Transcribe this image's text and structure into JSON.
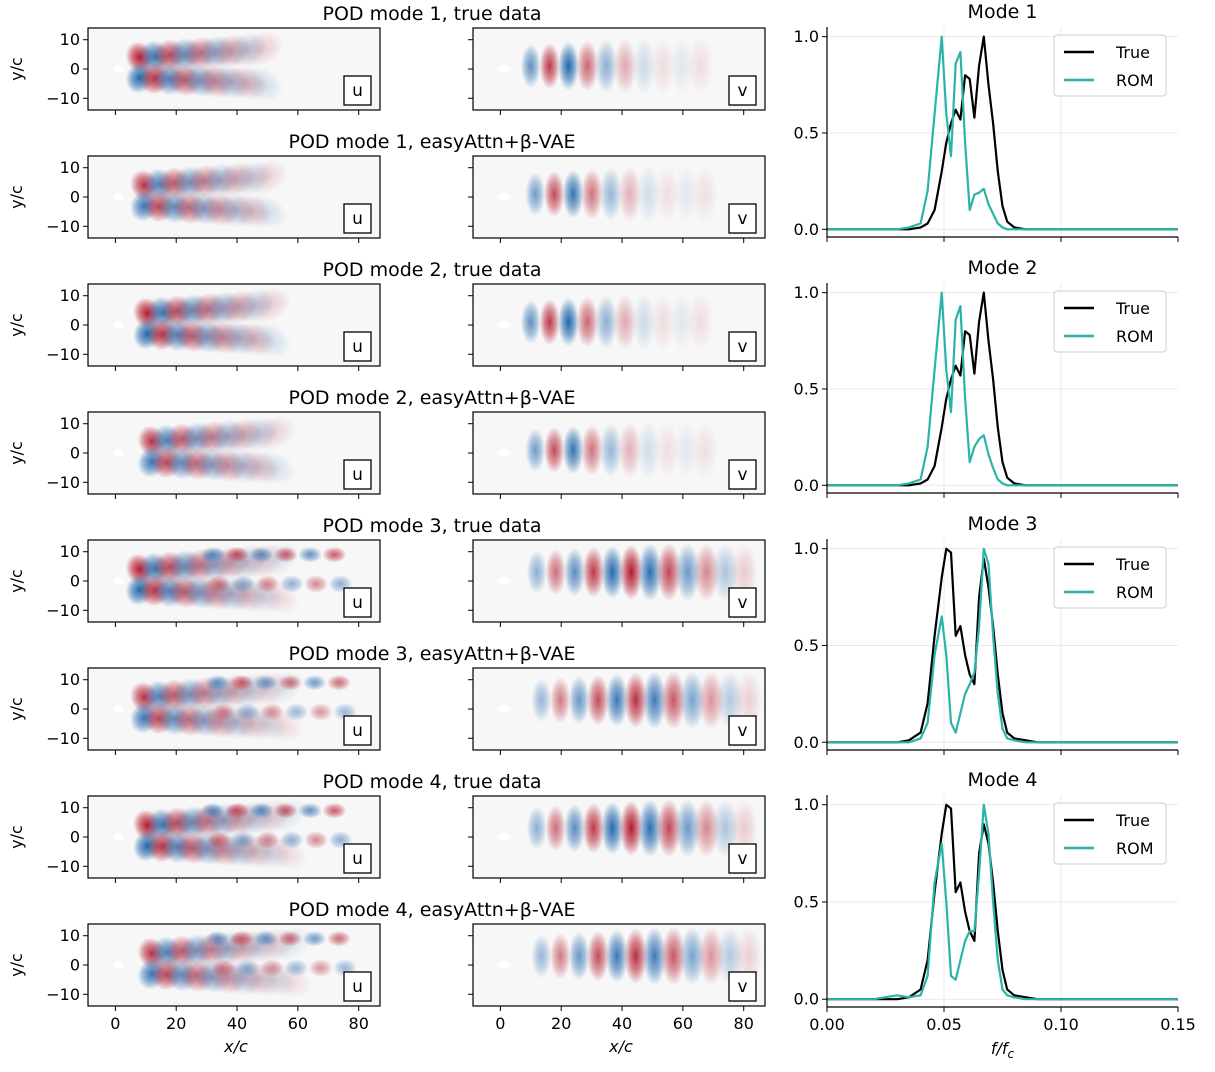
{
  "figure": {
    "rows": [
      {
        "title": "POD mode 1, true data"
      },
      {
        "title": "POD mode 1, easyAttn+β-VAE"
      },
      {
        "title": "POD mode 2, true data"
      },
      {
        "title": "POD mode 2, easyAttn+β-VAE"
      },
      {
        "title": "POD mode 3, true data"
      },
      {
        "title": "POD mode 3, easyAttn+β-VAE"
      },
      {
        "title": "POD mode 4, true data"
      },
      {
        "title": "POD mode 4, easyAttn+β-VAE"
      }
    ],
    "field_labels": {
      "u": "u",
      "v": "v"
    },
    "ylabel": "y/c",
    "xlabel": "x/c",
    "yticks": [
      "10",
      "0",
      "−10"
    ],
    "xticks": [
      "0",
      "20",
      "40",
      "60",
      "80"
    ],
    "colors": {
      "positive": "#b2182b",
      "negative": "#2166ac",
      "background": "#f7f7f7"
    }
  },
  "chart_data": [
    {
      "type": "line",
      "title": "Mode 1",
      "xlabel": "f/f_c",
      "ylabel": "",
      "xlim": [
        0,
        0.15
      ],
      "ylim": [
        -0.04,
        1.05
      ],
      "grid": true,
      "legend": "top-right",
      "xticks": [
        "0.00",
        "0.05",
        "0.10",
        "0.15"
      ],
      "yticks": [
        "0.0",
        "0.5",
        "1.0"
      ],
      "x": [
        0.0,
        0.02,
        0.03,
        0.035,
        0.04,
        0.043,
        0.046,
        0.049,
        0.051,
        0.053,
        0.055,
        0.057,
        0.059,
        0.061,
        0.063,
        0.065,
        0.067,
        0.069,
        0.071,
        0.073,
        0.075,
        0.077,
        0.08,
        0.085,
        0.09,
        0.1,
        0.15
      ],
      "series": [
        {
          "name": "True",
          "color": "#000000",
          "values": [
            0.0,
            0.0,
            0.0,
            0.0,
            0.01,
            0.03,
            0.1,
            0.3,
            0.45,
            0.55,
            0.62,
            0.57,
            0.8,
            0.78,
            0.58,
            0.85,
            1.0,
            0.75,
            0.55,
            0.3,
            0.12,
            0.04,
            0.01,
            0.0,
            0.0,
            0.0,
            0.0
          ]
        },
        {
          "name": "ROM",
          "color": "#2ab3a8",
          "values": [
            0.0,
            0.0,
            0.0,
            0.01,
            0.03,
            0.2,
            0.6,
            1.0,
            0.6,
            0.38,
            0.86,
            0.92,
            0.45,
            0.1,
            0.18,
            0.19,
            0.21,
            0.13,
            0.08,
            0.03,
            0.01,
            0.0,
            0.0,
            0.0,
            0.0,
            0.0,
            0.0
          ]
        }
      ]
    },
    {
      "type": "line",
      "title": "Mode 2",
      "xlabel": "f/f_c",
      "ylabel": "",
      "xlim": [
        0,
        0.15
      ],
      "ylim": [
        -0.04,
        1.05
      ],
      "grid": true,
      "legend": "top-right",
      "xticks": [
        "0.00",
        "0.05",
        "0.10",
        "0.15"
      ],
      "yticks": [
        "0.0",
        "0.5",
        "1.0"
      ],
      "x": [
        0.0,
        0.02,
        0.03,
        0.035,
        0.04,
        0.043,
        0.046,
        0.049,
        0.051,
        0.053,
        0.055,
        0.057,
        0.059,
        0.061,
        0.063,
        0.065,
        0.067,
        0.069,
        0.071,
        0.073,
        0.075,
        0.077,
        0.08,
        0.085,
        0.09,
        0.1,
        0.15
      ],
      "series": [
        {
          "name": "True",
          "color": "#000000",
          "values": [
            0.0,
            0.0,
            0.0,
            0.0,
            0.01,
            0.03,
            0.1,
            0.3,
            0.45,
            0.55,
            0.62,
            0.57,
            0.8,
            0.78,
            0.58,
            0.85,
            1.0,
            0.75,
            0.55,
            0.3,
            0.12,
            0.04,
            0.01,
            0.0,
            0.0,
            0.0,
            0.0
          ]
        },
        {
          "name": "ROM",
          "color": "#2ab3a8",
          "values": [
            0.0,
            0.0,
            0.0,
            0.01,
            0.03,
            0.2,
            0.6,
            1.0,
            0.6,
            0.38,
            0.86,
            0.93,
            0.45,
            0.12,
            0.2,
            0.24,
            0.26,
            0.16,
            0.09,
            0.03,
            0.01,
            0.0,
            0.0,
            0.0,
            0.0,
            0.0,
            0.0
          ]
        }
      ]
    },
    {
      "type": "line",
      "title": "Mode 3",
      "xlabel": "f/f_c",
      "ylabel": "",
      "xlim": [
        0,
        0.15
      ],
      "ylim": [
        -0.04,
        1.05
      ],
      "grid": true,
      "legend": "top-right",
      "xticks": [
        "0.00",
        "0.05",
        "0.10",
        "0.15"
      ],
      "yticks": [
        "0.0",
        "0.5",
        "1.0"
      ],
      "x": [
        0.0,
        0.02,
        0.03,
        0.035,
        0.04,
        0.043,
        0.046,
        0.049,
        0.051,
        0.053,
        0.055,
        0.057,
        0.059,
        0.061,
        0.063,
        0.065,
        0.067,
        0.069,
        0.071,
        0.073,
        0.075,
        0.077,
        0.08,
        0.085,
        0.09,
        0.1,
        0.15
      ],
      "series": [
        {
          "name": "True",
          "color": "#000000",
          "values": [
            0.0,
            0.0,
            0.0,
            0.01,
            0.05,
            0.2,
            0.55,
            0.85,
            1.0,
            0.98,
            0.55,
            0.6,
            0.45,
            0.35,
            0.3,
            0.75,
            0.95,
            0.8,
            0.6,
            0.35,
            0.15,
            0.05,
            0.02,
            0.01,
            0.0,
            0.0,
            0.0
          ]
        },
        {
          "name": "ROM",
          "color": "#2ab3a8",
          "values": [
            0.0,
            0.0,
            0.0,
            0.0,
            0.02,
            0.1,
            0.45,
            0.65,
            0.45,
            0.1,
            0.05,
            0.15,
            0.25,
            0.3,
            0.36,
            0.6,
            1.0,
            0.92,
            0.55,
            0.25,
            0.07,
            0.02,
            0.01,
            0.0,
            0.0,
            0.0,
            0.0
          ]
        }
      ]
    },
    {
      "type": "line",
      "title": "Mode 4",
      "xlabel": "f/f_c",
      "ylabel": "",
      "xlim": [
        0,
        0.15
      ],
      "ylim": [
        -0.04,
        1.05
      ],
      "grid": true,
      "legend": "top-right",
      "xticks": [
        "0.00",
        "0.05",
        "0.10",
        "0.15"
      ],
      "yticks": [
        "0.0",
        "0.5",
        "1.0"
      ],
      "x": [
        0.0,
        0.02,
        0.03,
        0.035,
        0.04,
        0.043,
        0.046,
        0.049,
        0.051,
        0.053,
        0.055,
        0.057,
        0.059,
        0.061,
        0.063,
        0.065,
        0.067,
        0.069,
        0.071,
        0.073,
        0.075,
        0.077,
        0.08,
        0.085,
        0.09,
        0.1,
        0.15
      ],
      "series": [
        {
          "name": "True",
          "color": "#000000",
          "values": [
            0.0,
            0.0,
            0.0,
            0.01,
            0.05,
            0.2,
            0.55,
            0.85,
            1.0,
            0.98,
            0.55,
            0.6,
            0.45,
            0.35,
            0.3,
            0.75,
            0.9,
            0.8,
            0.6,
            0.35,
            0.15,
            0.05,
            0.02,
            0.01,
            0.0,
            0.0,
            0.0
          ]
        },
        {
          "name": "ROM",
          "color": "#2ab3a8",
          "values": [
            0.0,
            0.0,
            0.02,
            0.01,
            0.02,
            0.12,
            0.6,
            0.8,
            0.5,
            0.12,
            0.1,
            0.2,
            0.3,
            0.35,
            0.35,
            0.65,
            1.0,
            0.85,
            0.5,
            0.2,
            0.05,
            0.02,
            0.01,
            0.0,
            0.0,
            0.0,
            0.0
          ]
        }
      ]
    }
  ]
}
